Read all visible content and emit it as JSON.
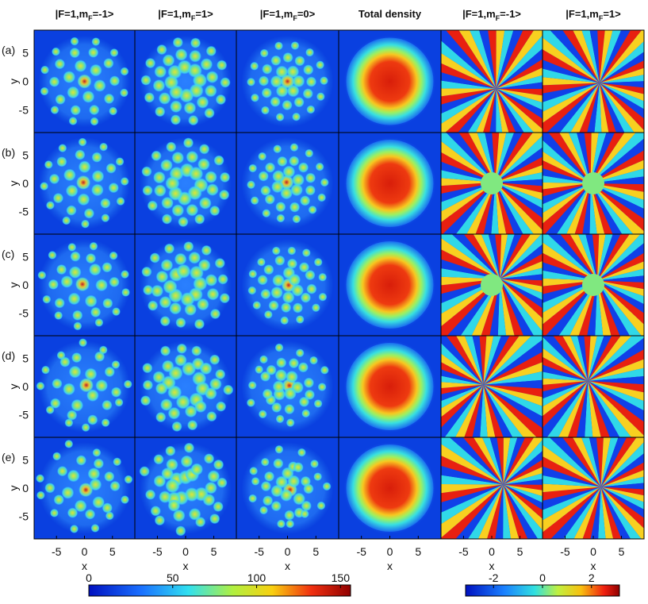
{
  "figure": {
    "columns": [
      [
        "|F=1,m",
        "F",
        "=-1>"
      ],
      [
        "|F=1,m",
        "F",
        "=1>"
      ],
      [
        "|F=1,m",
        "F",
        "=0>"
      ],
      [
        "Total density"
      ],
      [
        "|F=1,m",
        "F",
        "=-1>"
      ],
      [
        "|F=1,m",
        "F",
        "=1>"
      ]
    ],
    "rows": [
      "(a)",
      "(b)",
      "(c)",
      "(d)",
      "(e)"
    ],
    "x_label": "x",
    "y_label": "y",
    "xlim": [
      -9,
      9
    ],
    "ylim": [
      -9,
      9
    ],
    "xticks": [
      -5,
      0,
      5
    ],
    "yticks": [
      5,
      0,
      -5
    ],
    "density_colorbar": {
      "lim": [
        0,
        156
      ],
      "ticks": [
        0,
        50,
        100,
        150
      ]
    },
    "phase_colorbar": {
      "lim": [
        -3.14,
        3.14
      ],
      "ticks": [
        -2,
        0,
        2
      ]
    }
  }
}
